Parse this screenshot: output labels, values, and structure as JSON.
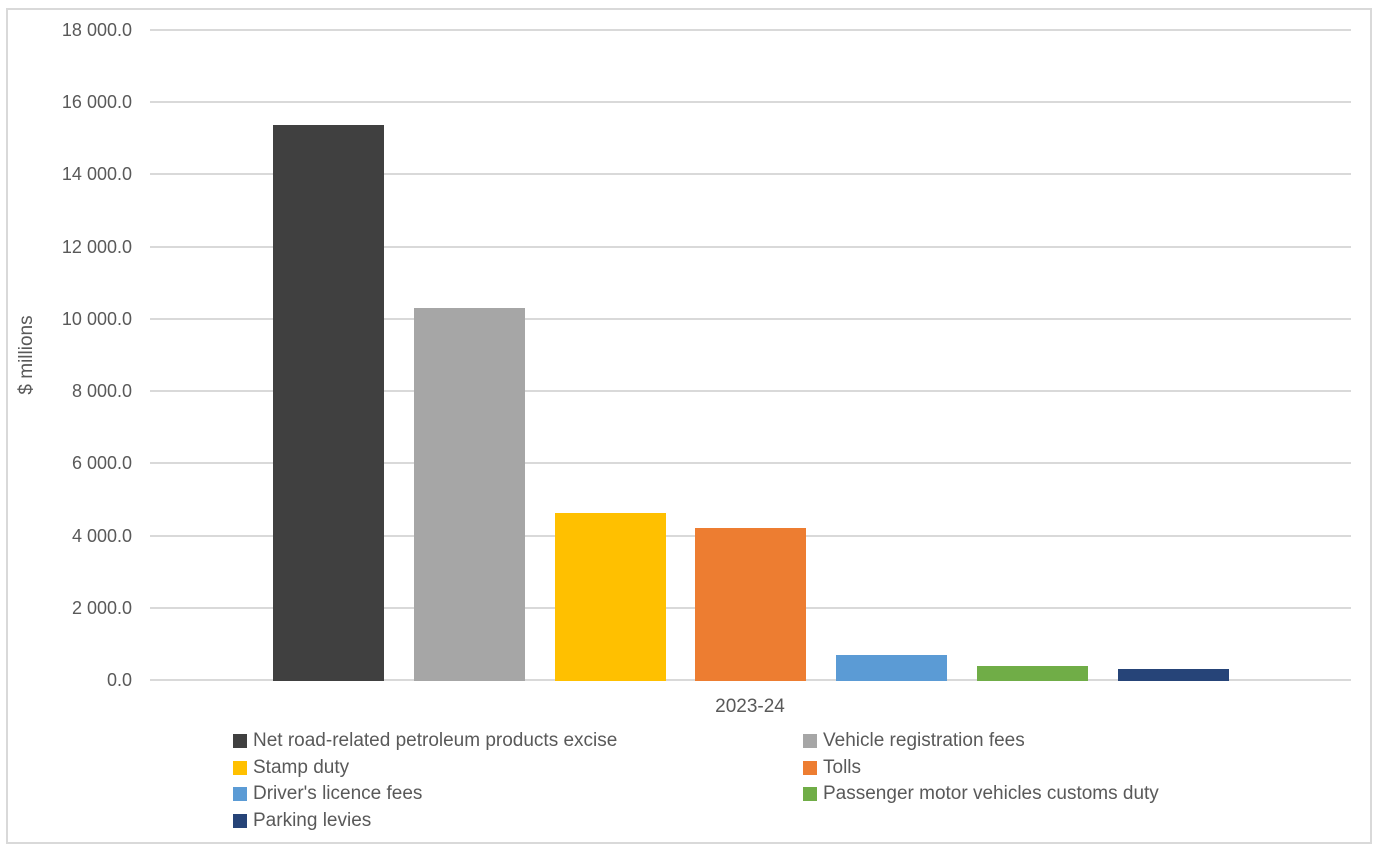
{
  "chart_data": {
    "type": "bar",
    "title": "",
    "categories": [
      "2023-24"
    ],
    "series": [
      {
        "name": "Net road-related petroleum products excise",
        "color": "#404040",
        "values": [
          15400
        ]
      },
      {
        "name": "Vehicle registration fees",
        "color": "#A6A6A6",
        "values": [
          10340
        ]
      },
      {
        "name": "Stamp duty",
        "color": "#FFC000",
        "values": [
          4650
        ]
      },
      {
        "name": "Tolls",
        "color": "#ED7D31",
        "values": [
          4240
        ]
      },
      {
        "name": "Driver's licence fees",
        "color": "#5B9BD5",
        "values": [
          720
        ]
      },
      {
        "name": "Passenger motor vehicles customs duty",
        "color": "#70AD47",
        "values": [
          410
        ]
      },
      {
        "name": "Parking levies",
        "color": "#264478",
        "values": [
          340
        ]
      }
    ],
    "xlabel": "",
    "ylabel": "$ millions",
    "ylim": [
      0,
      18000
    ],
    "ytick_interval": 2000,
    "ytick_labels": [
      "0.0",
      "2 000.0",
      "4 000.0",
      "6 000.0",
      "8 000.0",
      "10 000.0",
      "12 000.0",
      "14 000.0",
      "16 000.0",
      "18 000.0"
    ],
    "grid": "horizontal",
    "legend_position": "bottom",
    "legend_columns": 2
  },
  "styles": {
    "text_color": "#595959",
    "gridline_color": "#D9D9D9",
    "frame_border_color": "#D9D9D9",
    "background_color": "#FFFFFF"
  }
}
